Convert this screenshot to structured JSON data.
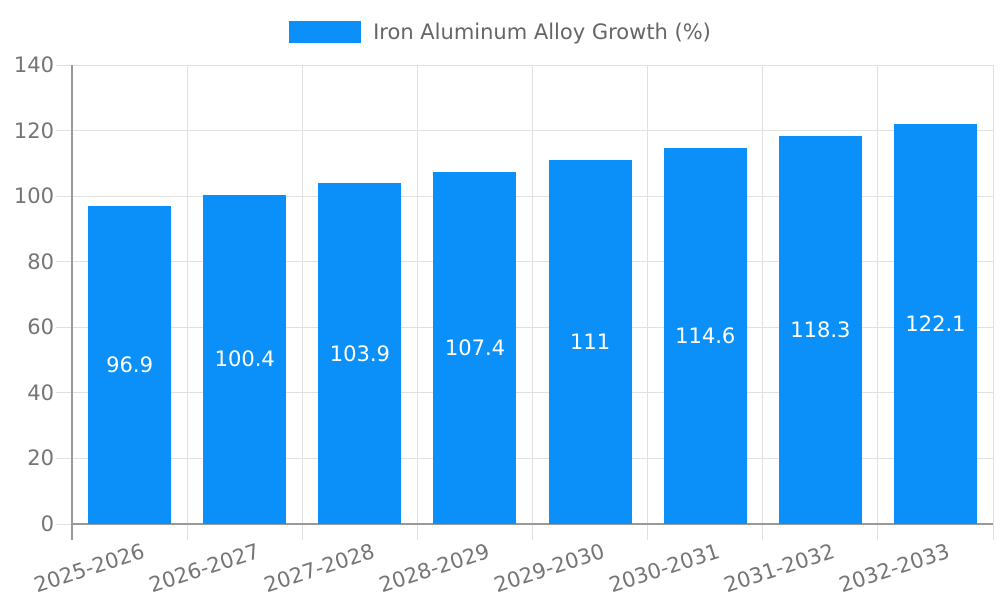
{
  "chart_data": {
    "type": "bar",
    "title": "Iron Aluminum Alloy Growth (%)",
    "categories": [
      "2025-2026",
      "2026-2027",
      "2027-2028",
      "2028-2029",
      "2029-2030",
      "2030-2031",
      "2031-2032",
      "2032-2033"
    ],
    "values": [
      96.9,
      100.4,
      103.9,
      107.4,
      111,
      114.6,
      118.3,
      122.1
    ],
    "value_labels": [
      "96.9",
      "100.4",
      "103.9",
      "107.4",
      "111",
      "114.6",
      "118.3",
      "122.1"
    ],
    "xlabel": "",
    "ylabel": "",
    "ylim": [
      0,
      140
    ],
    "yticks": [
      0,
      20,
      40,
      60,
      80,
      100,
      120,
      140
    ],
    "grid": "both",
    "legend_position": "top-center",
    "colors": {
      "bar": "#0A90F8",
      "axis_line": "#999999",
      "gridline": "#E0E0E0",
      "tick_label": "#757575",
      "legend_text": "#666666",
      "value_label": "#FFFFFF",
      "background": "#FFFFFF"
    }
  }
}
